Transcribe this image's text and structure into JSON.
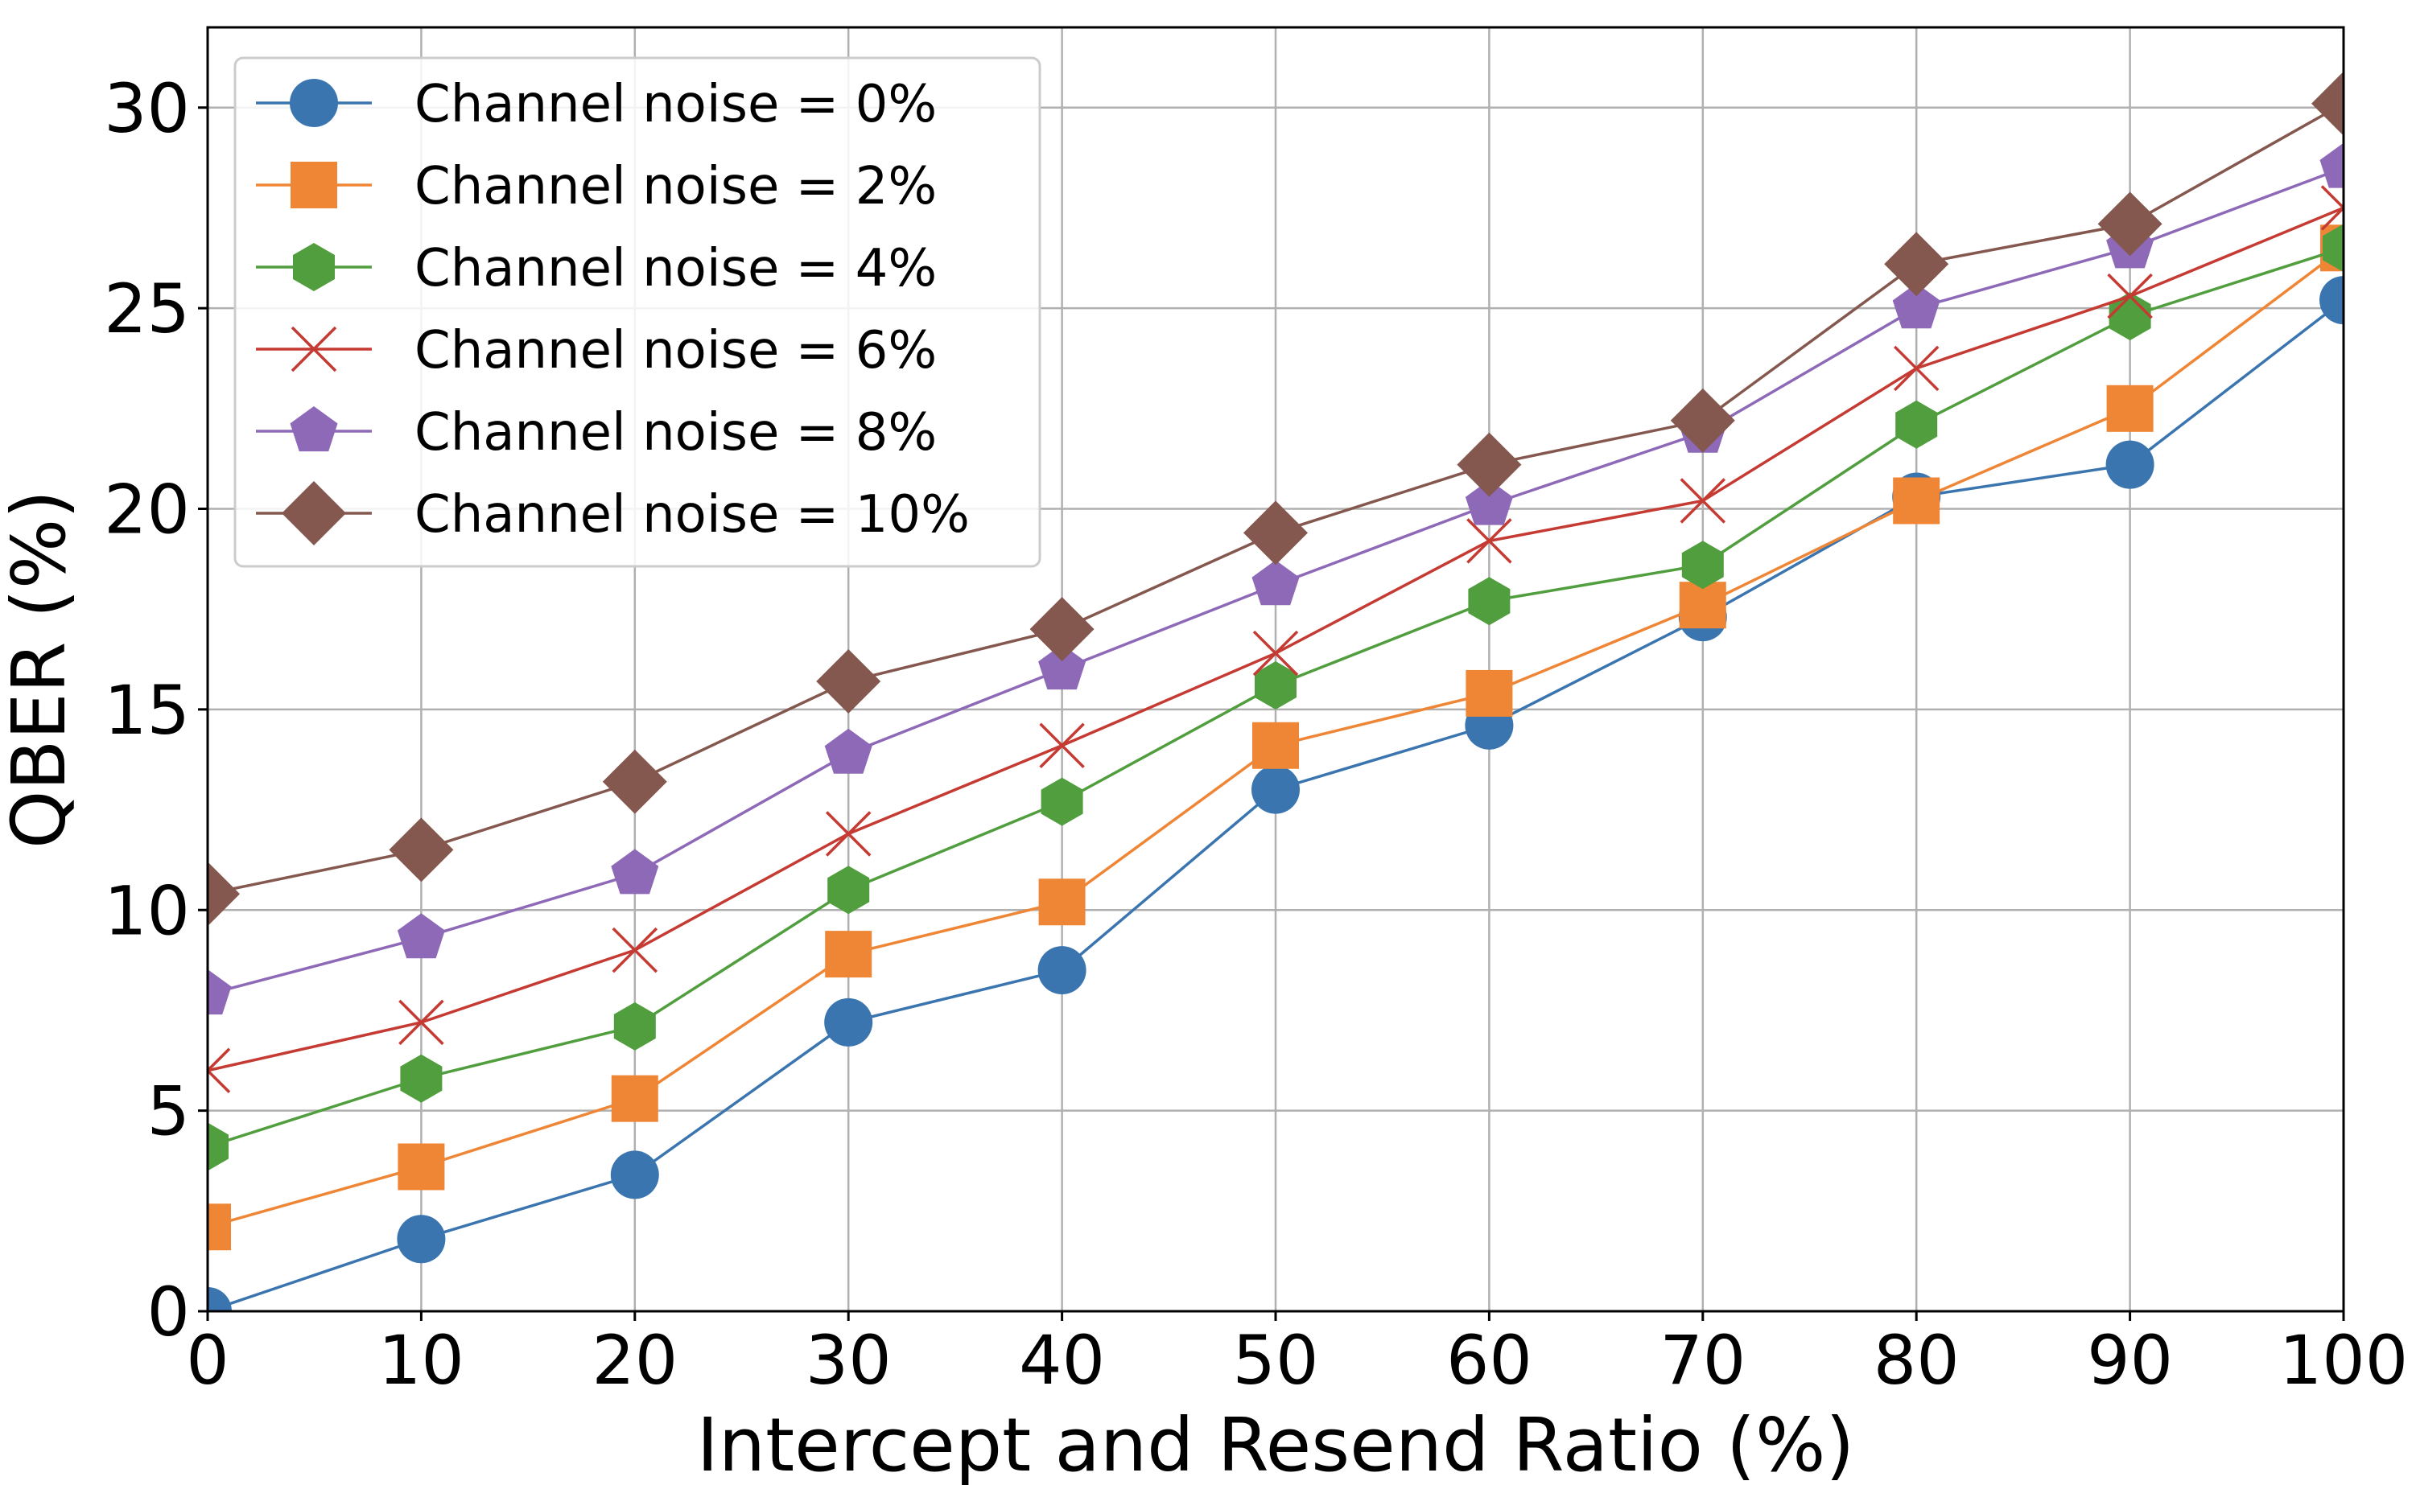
{
  "chart_data": {
    "type": "line",
    "title": "",
    "xlabel": "Intercept and Resend Ratio (%)",
    "ylabel": "QBER (%)",
    "xlim": [
      0,
      100
    ],
    "ylim": [
      0,
      32
    ],
    "xticks": [
      "0",
      "10",
      "20",
      "30",
      "40",
      "50",
      "60",
      "70",
      "80",
      "90",
      "100"
    ],
    "yticks": [
      "0",
      "5",
      "10",
      "15",
      "20",
      "25",
      "30"
    ],
    "grid": true,
    "legend_position": "top-left",
    "x": [
      0,
      10,
      20,
      30,
      40,
      50,
      60,
      70,
      80,
      90,
      100
    ],
    "series": [
      {
        "name": "Channel noise = 0%",
        "marker": "circle",
        "color": "#3b75af",
        "values": [
          0.0,
          1.8,
          3.4,
          7.2,
          8.5,
          13.0,
          14.6,
          17.3,
          20.3,
          21.1,
          25.2
        ]
      },
      {
        "name": "Channel noise = 2%",
        "marker": "square",
        "color": "#ef8636",
        "values": [
          2.1,
          3.6,
          5.3,
          8.9,
          10.2,
          14.1,
          15.4,
          17.6,
          20.2,
          22.5,
          26.5
        ]
      },
      {
        "name": "Channel noise = 4%",
        "marker": "hexagon",
        "color": "#519e3e",
        "values": [
          4.1,
          5.8,
          7.1,
          10.5,
          12.7,
          15.6,
          17.7,
          18.6,
          22.1,
          24.8,
          26.5
        ]
      },
      {
        "name": "Channel noise = 6%",
        "marker": "x",
        "color": "#c53a32",
        "values": [
          6.0,
          7.2,
          9.0,
          11.9,
          14.1,
          16.4,
          19.2,
          20.2,
          23.5,
          25.3,
          27.5
        ]
      },
      {
        "name": "Channel noise = 8%",
        "marker": "pentagon",
        "color": "#8d69b8",
        "values": [
          7.9,
          9.3,
          10.9,
          13.9,
          16.0,
          18.1,
          20.1,
          21.9,
          25.0,
          26.5,
          28.5
        ]
      },
      {
        "name": "Channel noise = 10%",
        "marker": "diamond",
        "color": "#84584e",
        "values": [
          10.4,
          11.5,
          13.2,
          15.7,
          17.0,
          19.4,
          21.1,
          22.2,
          26.1,
          27.1,
          30.1
        ]
      }
    ]
  }
}
